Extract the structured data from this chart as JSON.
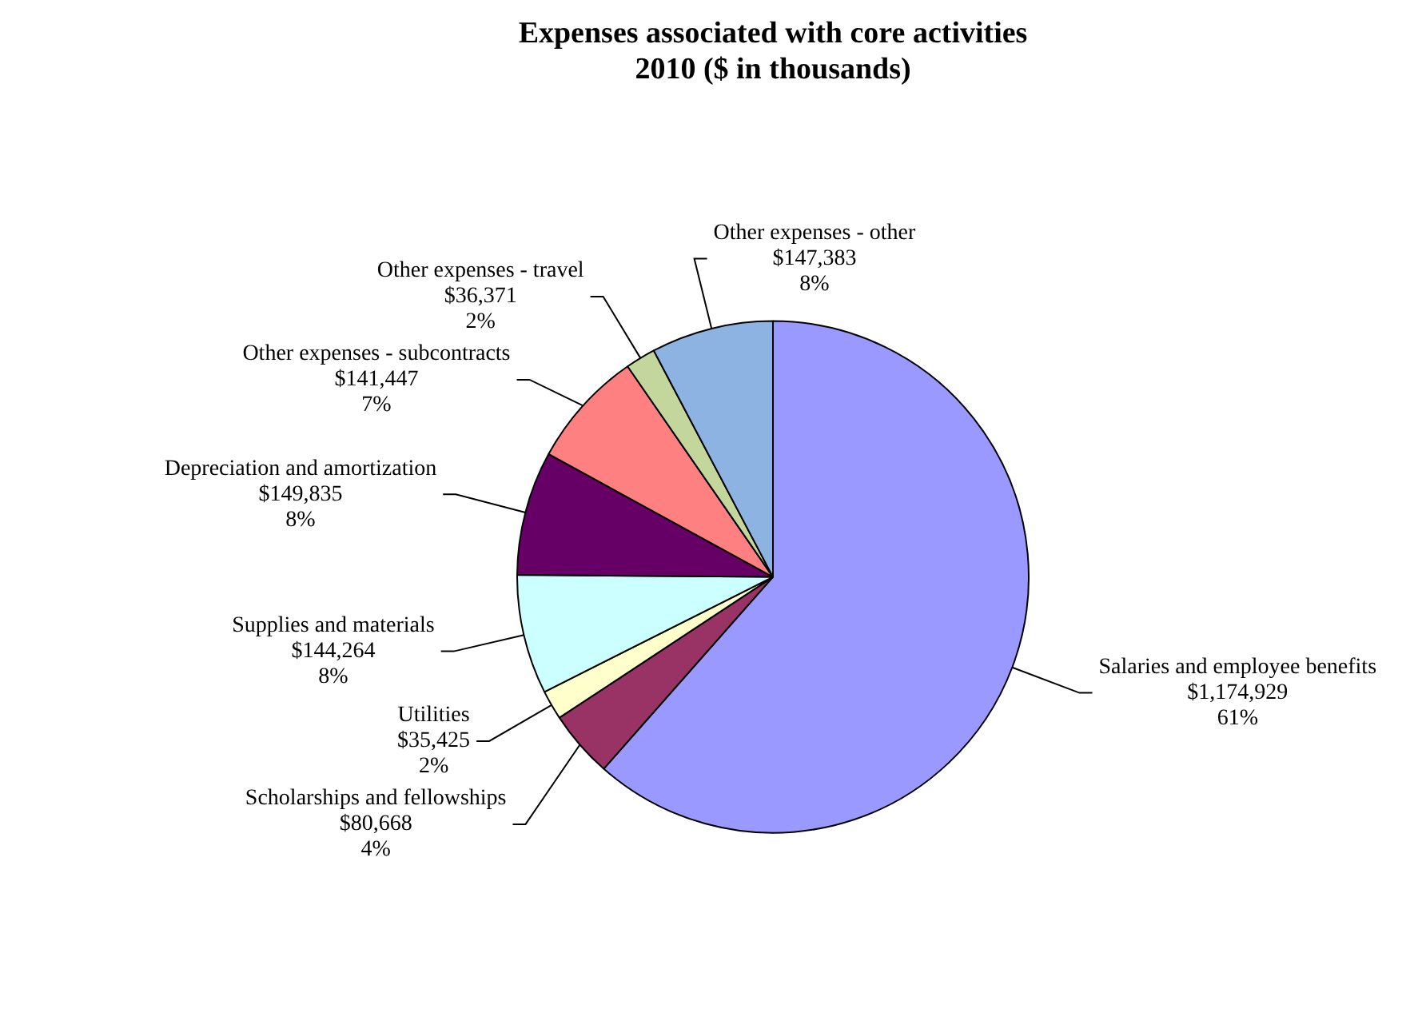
{
  "chart_data": {
    "type": "pie",
    "title": "Expenses associated with core activities\n2010 ($ in thousands)",
    "categories": [
      "Salaries and employee benefits",
      "Scholarships and fellowships",
      "Utilities",
      "Supplies and materials",
      "Depreciation and amortization",
      "Other expenses - subcontracts",
      "Other expenses - travel",
      "Other expenses - other"
    ],
    "values": [
      1174929,
      80668,
      35425,
      144264,
      149835,
      141447,
      36371,
      147383
    ],
    "value_labels": [
      "$1,174,929\n61%",
      "$80,668\n4%",
      "$35,425\n2%",
      "$144,264\n8%",
      "$149,835\n8%",
      "$141,447\n7%",
      "$36,371\n2%",
      "$147,383\n8%"
    ],
    "colors": [
      "#9999ff",
      "#993366",
      "#ffffcc",
      "#ccffff",
      "#660066",
      "#ff8080",
      "#c3d69b",
      "#8db3e2"
    ],
    "legend": false
  }
}
